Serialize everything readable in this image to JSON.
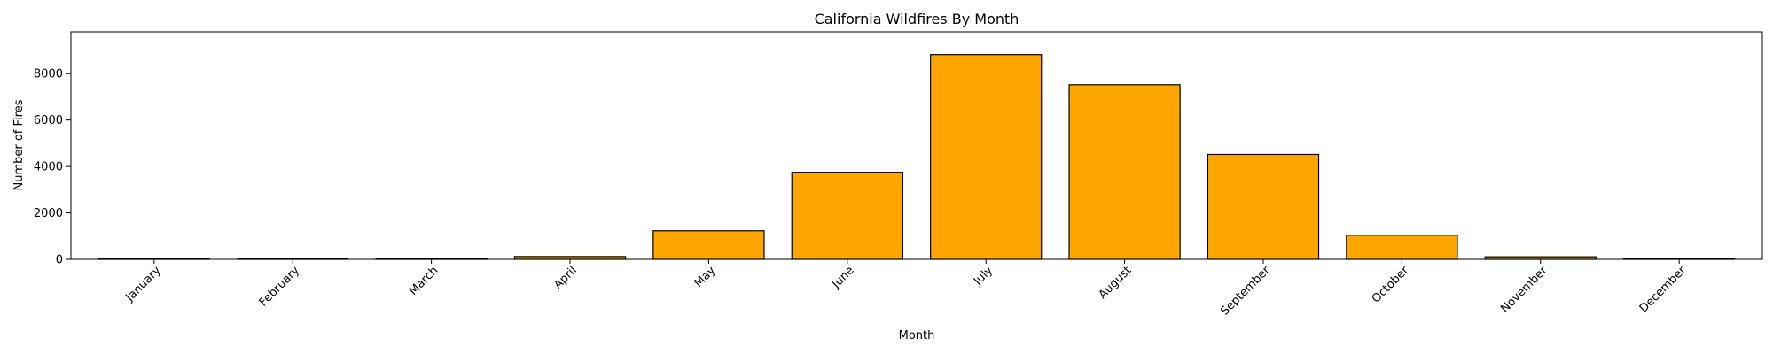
{
  "chart_data": {
    "type": "bar",
    "title": "California Wildfires By Month",
    "xlabel": "Month",
    "ylabel": "Number of Fires",
    "categories": [
      "January",
      "February",
      "March",
      "April",
      "May",
      "June",
      "July",
      "August",
      "September",
      "October",
      "November",
      "December"
    ],
    "values": [
      20,
      20,
      30,
      120,
      1230,
      3750,
      8820,
      7520,
      4520,
      1040,
      110,
      20
    ],
    "ylim": [
      0,
      9800
    ],
    "yticks": [
      0,
      2000,
      4000,
      6000,
      8000
    ],
    "bar_color": "#FFA500",
    "bar_edge_color": "#000000",
    "grid": false,
    "legend": "none"
  }
}
